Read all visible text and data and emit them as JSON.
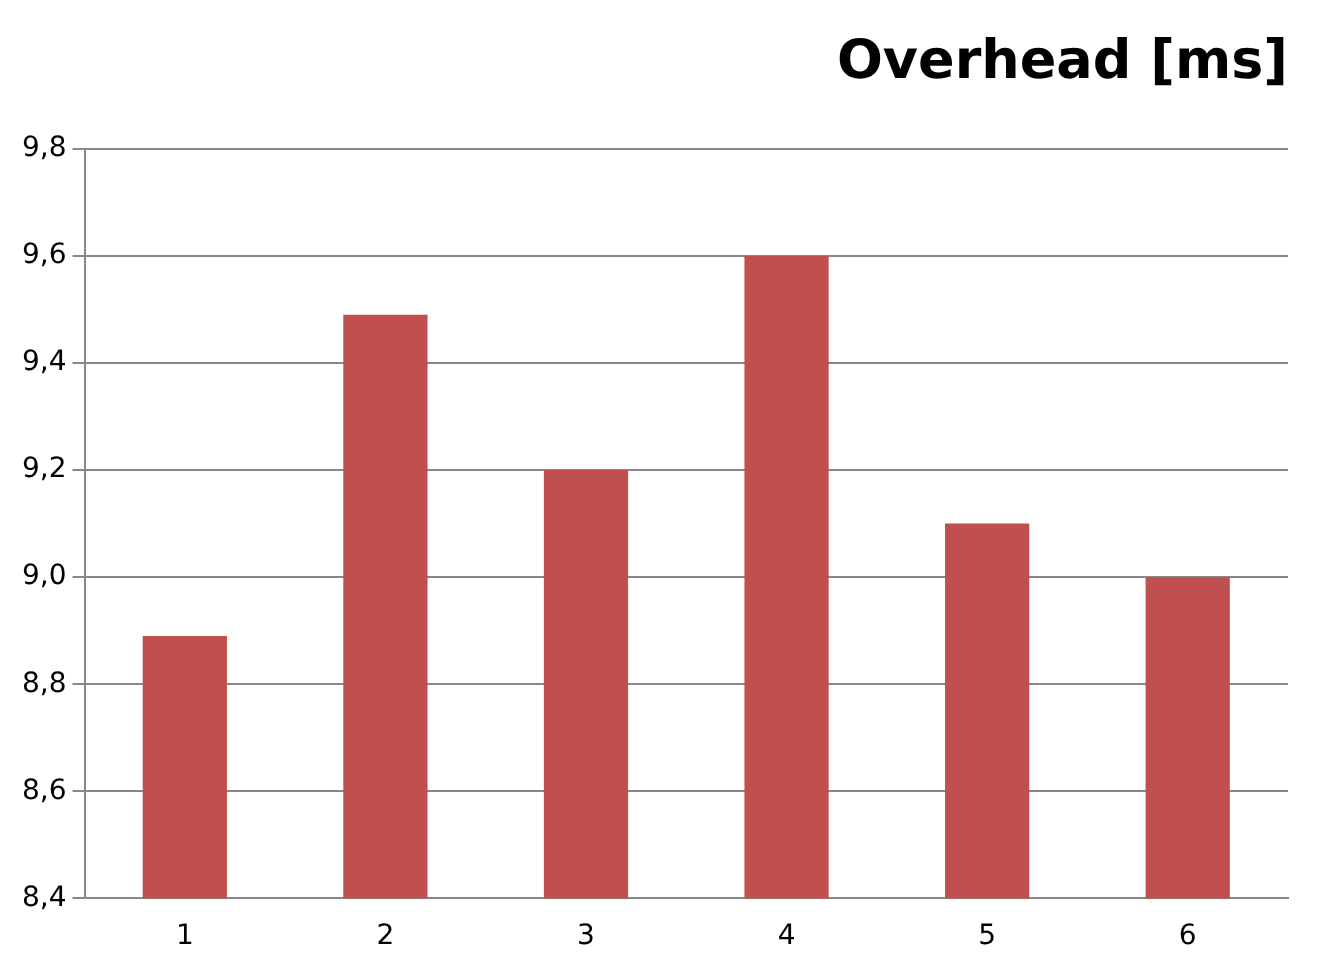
{
  "chart_data": {
    "type": "bar",
    "title": "Overhead [ms]",
    "categories": [
      "1",
      "2",
      "3",
      "4",
      "5",
      "6"
    ],
    "values": [
      8.89,
      9.49,
      9.2,
      9.6,
      9.1,
      9.0
    ],
    "color": "#c0504d",
    "ylim": [
      8.4,
      9.8
    ],
    "yticks": [
      {
        "value": 8.4,
        "label": "8,4"
      },
      {
        "value": 8.6,
        "label": "8,6"
      },
      {
        "value": 8.8,
        "label": "8,8"
      },
      {
        "value": 9.0,
        "label": "9,0"
      },
      {
        "value": 9.2,
        "label": "9,2"
      },
      {
        "value": 9.4,
        "label": "9,4"
      },
      {
        "value": 9.6,
        "label": "9,6"
      },
      {
        "value": 9.8,
        "label": "9,8"
      }
    ],
    "grid": "y",
    "legend": false
  }
}
